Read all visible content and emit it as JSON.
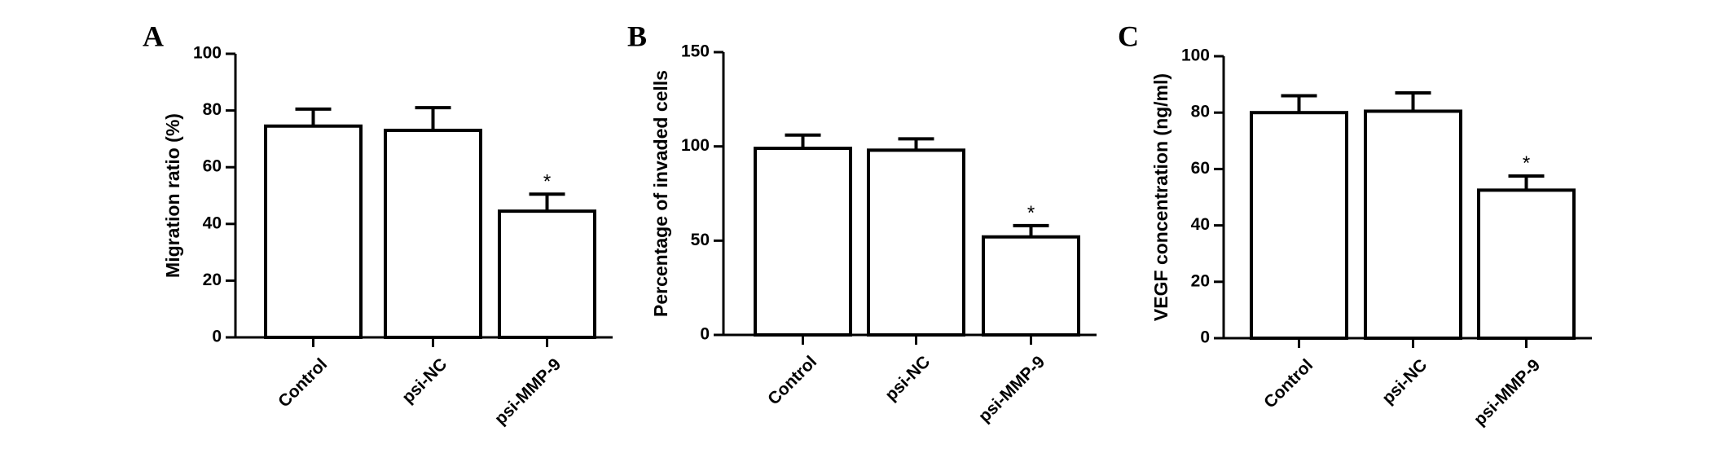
{
  "chart_data": [
    {
      "type": "bar",
      "panel": "A",
      "ylabel": "Migration ratio (%)",
      "categories": [
        "Control",
        "psi-NC",
        "psi-MMP-9"
      ],
      "values": [
        74.5,
        73,
        44.5
      ],
      "errors": [
        6,
        8,
        6
      ],
      "color": "#ffffff",
      "annotations": [
        {
          "label": "*",
          "category": "psi-MMP-9"
        }
      ],
      "ylim": [
        0,
        100
      ],
      "yticks": [
        0,
        20,
        40,
        60,
        80,
        100
      ]
    },
    {
      "type": "bar",
      "panel": "B",
      "ylabel": "Percentage of invaded cells",
      "categories": [
        "Control",
        "psi-NC",
        "psi-MMP-9"
      ],
      "values": [
        99,
        98,
        52
      ],
      "errors": [
        7,
        6,
        6
      ],
      "color": "#ffffff",
      "annotations": [
        {
          "label": "*",
          "category": "psi-MMP-9"
        }
      ],
      "ylim": [
        0,
        150
      ],
      "yticks": [
        0,
        50,
        100,
        150
      ]
    },
    {
      "type": "bar",
      "panel": "C",
      "ylabel": "VEGF concentration (ng/ml)",
      "categories": [
        "Control",
        "psi-NC",
        "psi-MMP-9"
      ],
      "values": [
        80,
        80.5,
        52.5
      ],
      "errors": [
        6,
        6.5,
        5
      ],
      "color": "#ffffff",
      "annotations": [
        {
          "label": "*",
          "category": "psi-MMP-9"
        }
      ],
      "ylim": [
        0,
        100
      ],
      "yticks": [
        0,
        20,
        40,
        60,
        80,
        100
      ]
    }
  ]
}
